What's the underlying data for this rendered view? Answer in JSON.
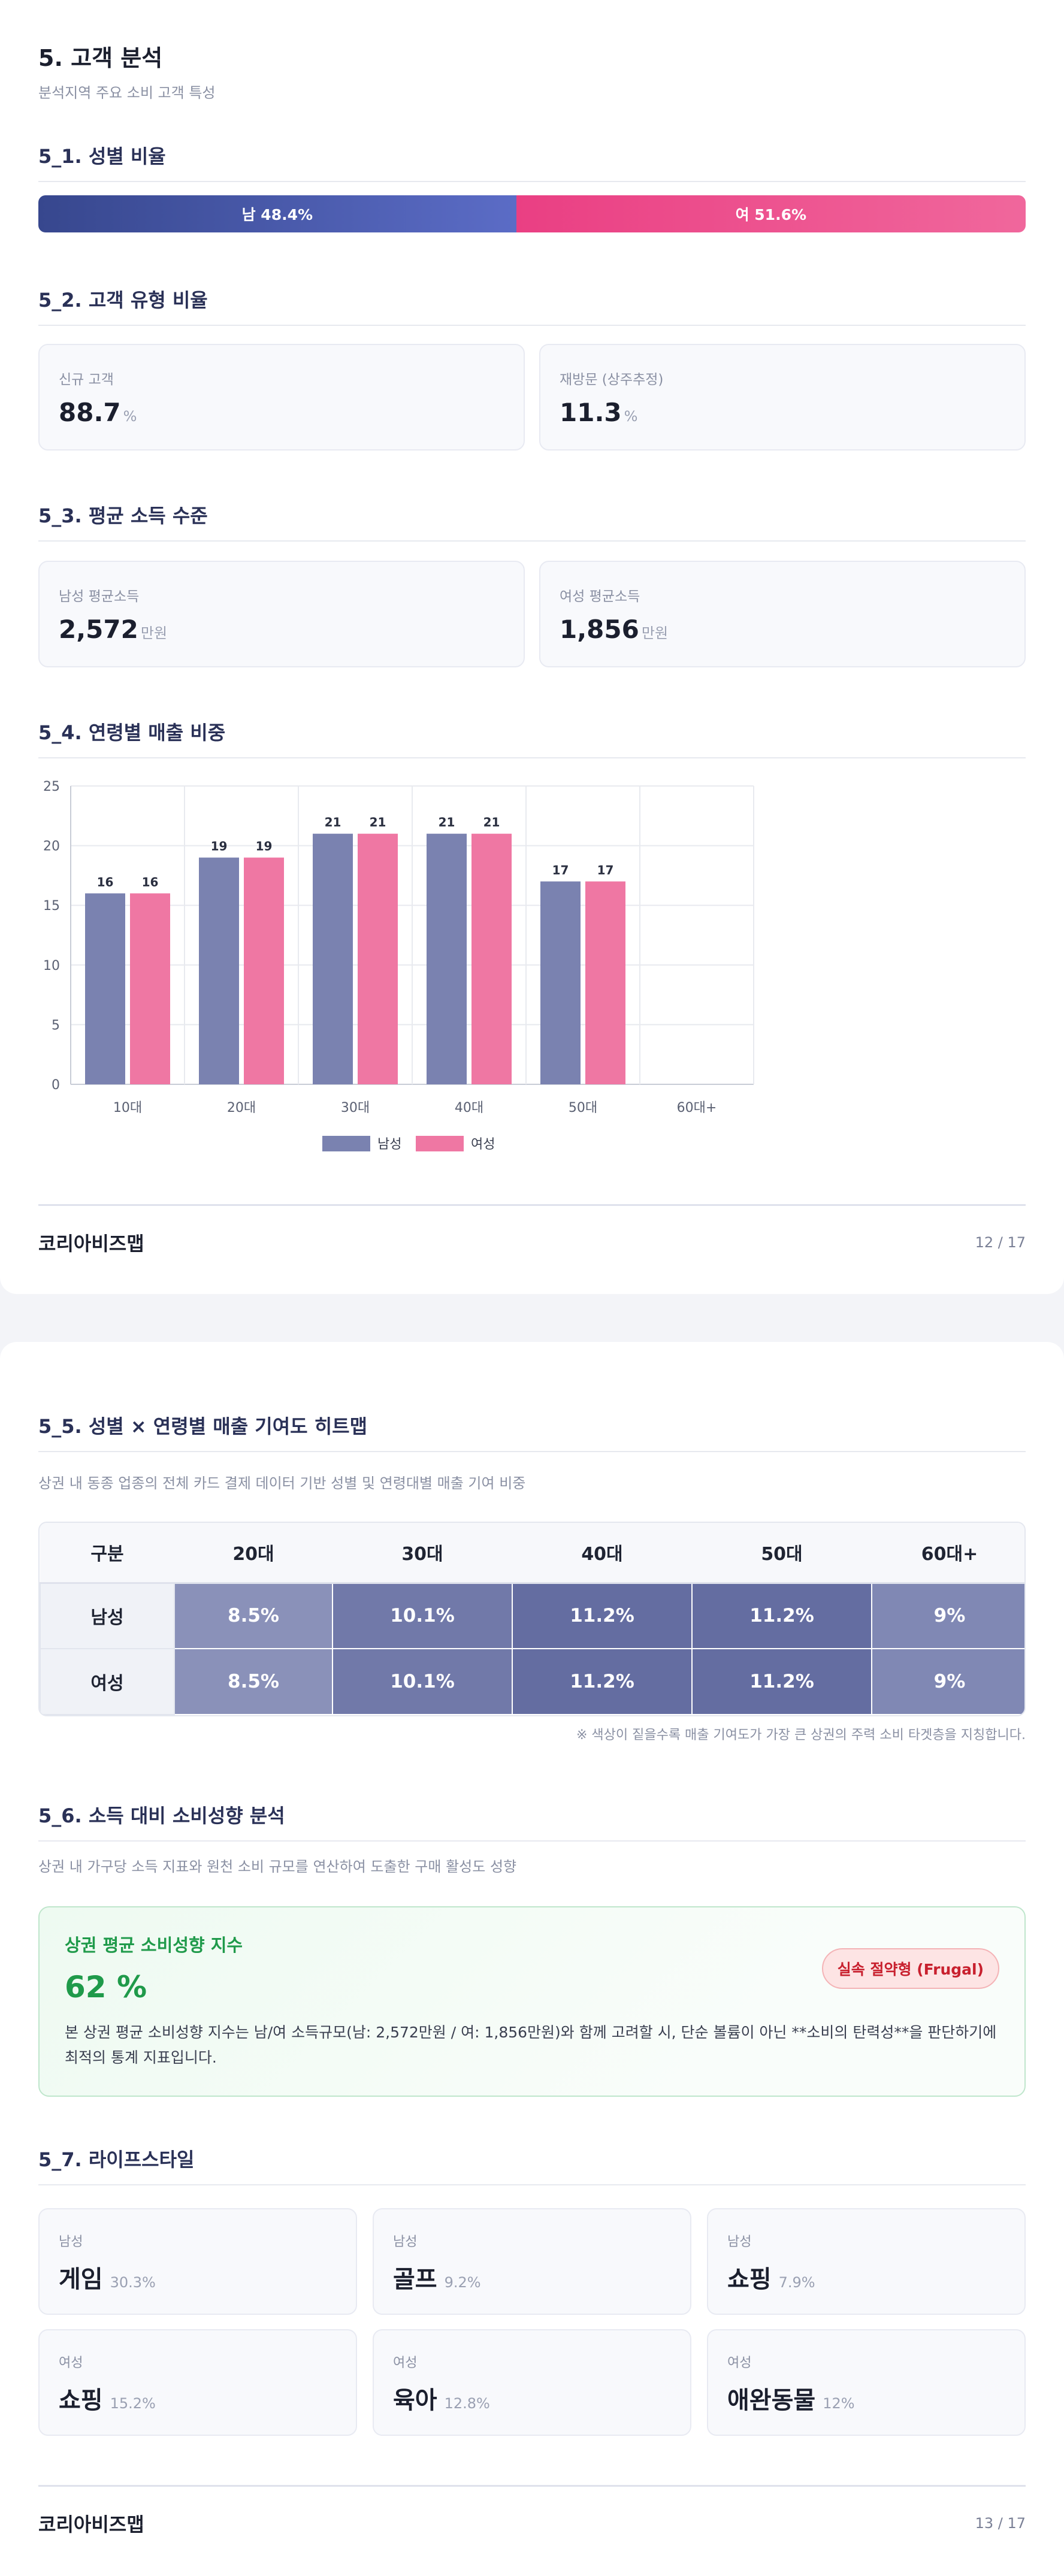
{
  "section": {
    "title": "5. 고객 분석",
    "subtitle": "분석지역 주요 소비 고객 특성"
  },
  "gender": {
    "heading": "5_1. 성별 비율",
    "male_label": "남 48.4%",
    "female_label": "여 51.6%",
    "male_ratio": 48.4,
    "female_ratio": 51.6
  },
  "customer_type": {
    "heading": "5_2. 고객 유형 비율",
    "cards": [
      {
        "label": "신규 고객",
        "value": "88.7",
        "unit": "%"
      },
      {
        "label": "재방문 (상주추정)",
        "value": "11.3",
        "unit": "%"
      }
    ]
  },
  "income": {
    "heading": "5_3. 평균 소득 수준",
    "cards": [
      {
        "label": "남성 평균소득",
        "value": "2,572",
        "unit": "만원"
      },
      {
        "label": "여성 평균소득",
        "value": "1,856",
        "unit": "만원"
      }
    ]
  },
  "age_sales": {
    "heading": "5_4. 연령별 매출 비중"
  },
  "chart_data": {
    "type": "bar",
    "categories": [
      "10대",
      "20대",
      "30대",
      "40대",
      "50대",
      "60대+"
    ],
    "series": [
      {
        "name": "남성",
        "values": [
          16,
          19,
          21,
          21,
          17,
          null
        ],
        "color": "#7a82b0"
      },
      {
        "name": "여성",
        "values": [
          16,
          19,
          21,
          21,
          17,
          null
        ],
        "color": "#ef77a3"
      }
    ],
    "ylim": [
      0,
      25
    ],
    "yticks": [
      0,
      5,
      10,
      15,
      20,
      25
    ],
    "grid": true,
    "legend": "bottom-center"
  },
  "footer1": {
    "brand": "코리아비즈맵",
    "page": "12 / 17"
  },
  "heatmap": {
    "heading": "5_5. 성별 × 연령별 매출 기여도 히트맵",
    "description": "상권 내 동종 업종의 전체 카드 결제 데이터 기반 성별 및 연령대별 매출 기여 비중",
    "columns": [
      "구분",
      "20대",
      "30대",
      "40대",
      "50대",
      "60대+"
    ],
    "rows": [
      {
        "label": "남성",
        "cells": [
          "8.5%",
          "10.1%",
          "11.2%",
          "11.2%",
          "9%"
        ]
      },
      {
        "label": "여성",
        "cells": [
          "8.5%",
          "10.1%",
          "11.2%",
          "11.2%",
          "9%"
        ]
      }
    ],
    "cell_colors": [
      "#8a91b9",
      "#7179a9",
      "#646da1",
      "#646da1",
      "#8088b4"
    ],
    "note": "※ 색상이 짙을수록 매출 기여도가 가장 큰 상권의 주력 소비 타겟층을 지칭합니다."
  },
  "spending": {
    "heading": "5_6. 소득 대비 소비성향 분석",
    "description": "상권 내 가구당 소득 지표와 원천 소비 규모를 연산하여 도출한 구매 활성도 성향",
    "title": "상권 평균 소비성향 지수",
    "value": "62 %",
    "badge": "실속 절약형 (Frugal)",
    "text": "본 상권 평균 소비성향 지수는 남/여 소득규모(남: 2,572만원 / 여: 1,856만원)와 함께 고려할 시, 단순 볼륨이 아닌 **소비의 탄력성**을 판단하기에 최적의 통계 지표입니다."
  },
  "lifestyle": {
    "heading": "5_7. 라이프스타일",
    "cards": [
      {
        "gender": "남성",
        "name": "게임",
        "pct": "30.3%"
      },
      {
        "gender": "남성",
        "name": "골프",
        "pct": "9.2%"
      },
      {
        "gender": "남성",
        "name": "쇼핑",
        "pct": "7.9%"
      },
      {
        "gender": "여성",
        "name": "쇼핑",
        "pct": "15.2%"
      },
      {
        "gender": "여성",
        "name": "육아",
        "pct": "12.8%"
      },
      {
        "gender": "여성",
        "name": "애완동물",
        "pct": "12%"
      }
    ]
  },
  "footer2": {
    "brand": "코리아비즈맵",
    "page": "13 / 17"
  }
}
